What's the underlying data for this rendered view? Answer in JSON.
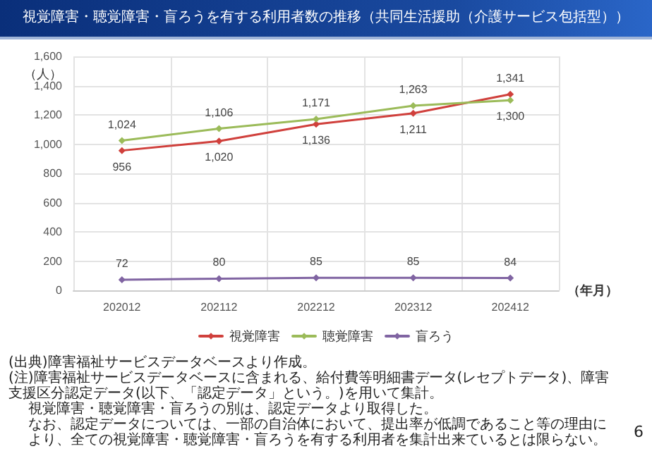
{
  "chart_data": {
    "type": "line",
    "title": "視覚障害・聴覚障害・盲ろうを有する利用者数の推移（共同生活援助（介護サービス包括型））",
    "xlabel": "（年月）",
    "ylabel": "（人）",
    "categories": [
      "202012",
      "202112",
      "202212",
      "202312",
      "202412"
    ],
    "series": [
      {
        "name": "視覚障害",
        "color": "#d0403c",
        "values": [
          956,
          1020,
          1136,
          1211,
          1341
        ],
        "value_labels": [
          "956",
          "1,020",
          "1,136",
          "1,211",
          "1,341"
        ]
      },
      {
        "name": "聴覚障害",
        "color": "#9bbb59",
        "values": [
          1024,
          1106,
          1171,
          1263,
          1300
        ],
        "value_labels": [
          "1,024",
          "1,106",
          "1,171",
          "1,263",
          "1,300"
        ]
      },
      {
        "name": "盲ろう",
        "color": "#8064a2",
        "values": [
          72,
          80,
          85,
          85,
          84
        ],
        "value_labels": [
          "72",
          "80",
          "85",
          "85",
          "84"
        ]
      }
    ],
    "ylim": [
      0,
      1600
    ],
    "yticks": [
      {
        "value": 0,
        "label": "0"
      },
      {
        "value": 200,
        "label": "200"
      },
      {
        "value": 400,
        "label": "400"
      },
      {
        "value": 600,
        "label": "600"
      },
      {
        "value": 800,
        "label": "800"
      },
      {
        "value": 1000,
        "label": "1,000"
      },
      {
        "value": 1200,
        "label": "1,200"
      },
      {
        "value": 1400,
        "label": "1,400"
      },
      {
        "value": 1600,
        "label": "1,600"
      }
    ],
    "grid": true,
    "legend": "bottom",
    "marker": "diamond",
    "line_style": "solid",
    "annotations": [
      "(出典)障害福祉サービスデータベースより作成。",
      "(注)障害福祉サービスデータベースに含まれる、給付費等明細書データ(レセプトデータ)、障害支援区分認定データ(以下、「認定データ」という。)を用いて集計。",
      "視覚障害・聴覚障害・盲ろうの別は、認定データより取得した。",
      "なお、認定データについては、一部の自治体において、提出率が低調であること等の理由により、全ての視覚障害・聴覚障害・盲ろうを有する利用者を集計出来ているとは限らない。",
      "6"
    ]
  }
}
